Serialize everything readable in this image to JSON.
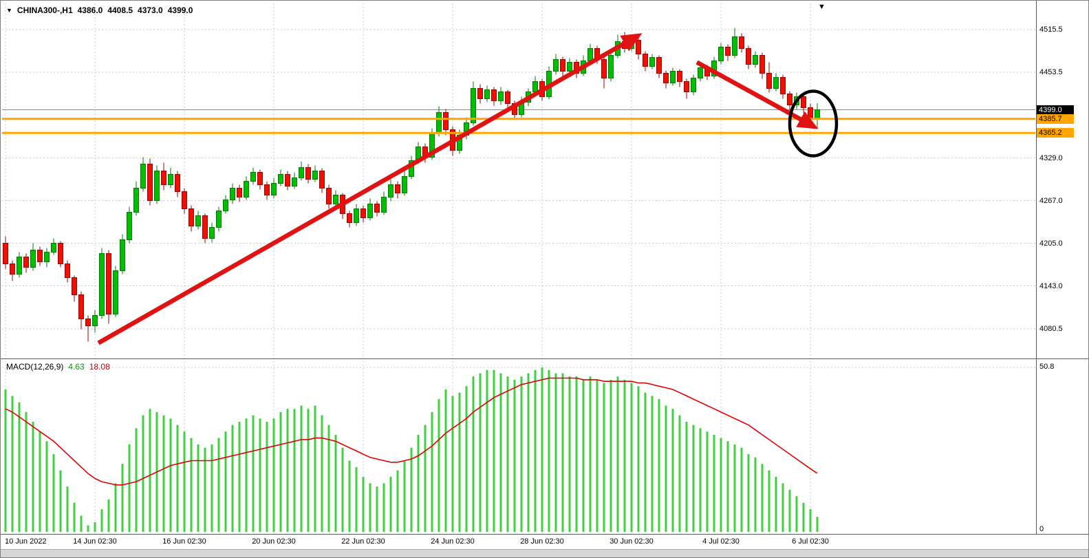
{
  "header": {
    "title": "CHINA300-,H1",
    "open": "4386.0",
    "high": "4408.5",
    "low": "4373.0",
    "close": "4399.0"
  },
  "macd_header": {
    "title": "MACD(12,26,9)",
    "main_value": "4.63",
    "signal_value": "18.08"
  },
  "macd_scale": {
    "top": "50.8",
    "zero": "0"
  },
  "shift_marker": "▼",
  "dropdown_marker": "▼",
  "chart_data": {
    "type": "candlestick",
    "title": "CHINA300- H1 with MACD(12,26,9)",
    "price_axis": {
      "max": 4515.5,
      "min": 4080.5,
      "ticks": [
        4515.5,
        4453.5,
        4329.0,
        4267.0,
        4205.0,
        4143.0,
        4080.5
      ]
    },
    "time_axis": {
      "labels": [
        "10 Jun 2022",
        "14 Jun 02:30",
        "16 Jun 02:30",
        "20 Jun 02:30",
        "22 Jun 02:30",
        "24 Jun 02:30",
        "28 Jun 02:30",
        "30 Jun 02:30",
        "4 Jul 02:30",
        "6 Jul 02:30"
      ],
      "tick_indices": [
        0,
        13,
        26,
        39,
        52,
        65,
        78,
        91,
        104,
        117
      ]
    },
    "current_price": {
      "value": 4399.0,
      "label": "4399.0"
    },
    "levels": [
      {
        "price": 4385.7,
        "label": "4385.7"
      },
      {
        "price": 4365.2,
        "label": "4365.2"
      }
    ],
    "annotations": {
      "uptrend_arrow": {
        "from_index": 13.5,
        "from_price": 4060,
        "to_index": 92,
        "to_price": 4507
      },
      "downtrend_arrow": {
        "from_index": 100.5,
        "from_price": 4468,
        "to_index": 117.6,
        "to_price": 4374
      },
      "highlight_ellipse": {
        "center_index": 117.4,
        "center_price": 4379,
        "radius_x_indices": 3.4,
        "radius_y_points": 47
      }
    },
    "candles": [
      [
        4205,
        4215,
        4168,
        4175
      ],
      [
        4175,
        4180,
        4150,
        4160
      ],
      [
        4160,
        4192,
        4155,
        4185
      ],
      [
        4185,
        4190,
        4162,
        4170
      ],
      [
        4170,
        4205,
        4165,
        4195
      ],
      [
        4195,
        4200,
        4172,
        4178
      ],
      [
        4178,
        4198,
        4170,
        4192
      ],
      [
        4192,
        4212,
        4188,
        4205
      ],
      [
        4205,
        4208,
        4170,
        4175
      ],
      [
        4175,
        4180,
        4148,
        4155
      ],
      [
        4155,
        4158,
        4120,
        4130
      ],
      [
        4130,
        4135,
        4080,
        4095
      ],
      [
        4095,
        4100,
        4062,
        4085
      ],
      [
        4085,
        4108,
        4075,
        4100
      ],
      [
        4100,
        4198,
        4095,
        4190
      ],
      [
        4190,
        4195,
        4088,
        4102
      ],
      [
        4102,
        4172,
        4098,
        4165
      ],
      [
        4165,
        4218,
        4160,
        4210
      ],
      [
        4210,
        4258,
        4205,
        4250
      ],
      [
        4250,
        4295,
        4245,
        4285
      ],
      [
        4285,
        4330,
        4280,
        4320
      ],
      [
        4320,
        4328,
        4260,
        4267
      ],
      [
        4267,
        4318,
        4262,
        4310
      ],
      [
        4310,
        4322,
        4282,
        4290
      ],
      [
        4290,
        4315,
        4285,
        4305
      ],
      [
        4305,
        4310,
        4272,
        4280
      ],
      [
        4280,
        4285,
        4248,
        4255
      ],
      [
        4255,
        4260,
        4222,
        4230
      ],
      [
        4230,
        4252,
        4225,
        4245
      ],
      [
        4245,
        4248,
        4205,
        4212
      ],
      [
        4212,
        4235,
        4206,
        4228
      ],
      [
        4228,
        4258,
        4222,
        4252
      ],
      [
        4252,
        4275,
        4248,
        4268
      ],
      [
        4268,
        4292,
        4262,
        4285
      ],
      [
        4285,
        4290,
        4265,
        4272
      ],
      [
        4272,
        4302,
        4268,
        4295
      ],
      [
        4295,
        4315,
        4290,
        4308
      ],
      [
        4308,
        4312,
        4283,
        4290
      ],
      [
        4290,
        4295,
        4268,
        4275
      ],
      [
        4275,
        4300,
        4270,
        4292
      ],
      [
        4292,
        4312,
        4288,
        4305
      ],
      [
        4305,
        4310,
        4282,
        4288
      ],
      [
        4288,
        4308,
        4284,
        4300
      ],
      [
        4300,
        4324,
        4296,
        4315
      ],
      [
        4315,
        4320,
        4292,
        4298
      ],
      [
        4298,
        4318,
        4294,
        4310
      ],
      [
        4310,
        4314,
        4278,
        4285
      ],
      [
        4285,
        4290,
        4255,
        4262
      ],
      [
        4262,
        4282,
        4256,
        4275
      ],
      [
        4275,
        4278,
        4240,
        4248
      ],
      [
        4248,
        4252,
        4228,
        4235
      ],
      [
        4235,
        4262,
        4230,
        4255
      ],
      [
        4255,
        4260,
        4235,
        4242
      ],
      [
        4242,
        4270,
        4238,
        4262
      ],
      [
        4262,
        4266,
        4244,
        4250
      ],
      [
        4250,
        4280,
        4246,
        4272
      ],
      [
        4272,
        4298,
        4266,
        4290
      ],
      [
        4290,
        4295,
        4270,
        4278
      ],
      [
        4278,
        4310,
        4274,
        4302
      ],
      [
        4302,
        4332,
        4298,
        4325
      ],
      [
        4325,
        4352,
        4320,
        4345
      ],
      [
        4345,
        4350,
        4322,
        4330
      ],
      [
        4330,
        4372,
        4326,
        4365
      ],
      [
        4365,
        4404,
        4360,
        4395
      ],
      [
        4395,
        4400,
        4362,
        4370
      ],
      [
        4370,
        4375,
        4332,
        4340
      ],
      [
        4340,
        4370,
        4335,
        4362
      ],
      [
        4362,
        4388,
        4356,
        4380
      ],
      [
        4380,
        4440,
        4376,
        4430
      ],
      [
        4430,
        4436,
        4408,
        4415
      ],
      [
        4415,
        4434,
        4410,
        4428
      ],
      [
        4428,
        4432,
        4405,
        4412
      ],
      [
        4412,
        4432,
        4406,
        4425
      ],
      [
        4425,
        4428,
        4400,
        4408
      ],
      [
        4408,
        4412,
        4385,
        4392
      ],
      [
        4392,
        4418,
        4388,
        4410
      ],
      [
        4410,
        4430,
        4404,
        4425
      ],
      [
        4425,
        4448,
        4420,
        4440
      ],
      [
        4440,
        4444,
        4412,
        4418
      ],
      [
        4418,
        4462,
        4414,
        4455
      ],
      [
        4455,
        4480,
        4450,
        4472
      ],
      [
        4472,
        4476,
        4448,
        4455
      ],
      [
        4455,
        4474,
        4450,
        4468
      ],
      [
        4468,
        4472,
        4445,
        4452
      ],
      [
        4452,
        4478,
        4448,
        4470
      ],
      [
        4470,
        4495,
        4465,
        4488
      ],
      [
        4488,
        4492,
        4466,
        4472
      ],
      [
        4472,
        4476,
        4430,
        4445
      ],
      [
        4445,
        4485,
        4440,
        4478
      ],
      [
        4478,
        4508,
        4474,
        4498
      ],
      [
        4498,
        4512,
        4482,
        4488
      ],
      [
        4488,
        4506,
        4484,
        4500
      ],
      [
        4500,
        4504,
        4472,
        4480
      ],
      [
        4480,
        4484,
        4455,
        4462
      ],
      [
        4462,
        4480,
        4458,
        4475
      ],
      [
        4475,
        4478,
        4445,
        4452
      ],
      [
        4452,
        4456,
        4430,
        4438
      ],
      [
        4438,
        4460,
        4434,
        4455
      ],
      [
        4455,
        4458,
        4432,
        4440
      ],
      [
        4440,
        4444,
        4415,
        4425
      ],
      [
        4425,
        4450,
        4420,
        4445
      ],
      [
        4445,
        4466,
        4440,
        4460
      ],
      [
        4460,
        4464,
        4442,
        4448
      ],
      [
        4448,
        4476,
        4444,
        4470
      ],
      [
        4470,
        4496,
        4465,
        4490
      ],
      [
        4490,
        4494,
        4470,
        4478
      ],
      [
        4478,
        4518,
        4474,
        4505
      ],
      [
        4505,
        4510,
        4482,
        4488
      ],
      [
        4488,
        4492,
        4458,
        4465
      ],
      [
        4465,
        4484,
        4460,
        4478
      ],
      [
        4478,
        4482,
        4444,
        4452
      ],
      [
        4452,
        4468,
        4424,
        4430
      ],
      [
        4430,
        4452,
        4426,
        4446
      ],
      [
        4446,
        4450,
        4415,
        4422
      ],
      [
        4422,
        4426,
        4398,
        4406
      ],
      [
        4406,
        4424,
        4400,
        4418
      ],
      [
        4418,
        4422,
        4394,
        4402
      ],
      [
        4402,
        4408,
        4378,
        4386
      ],
      [
        4386,
        4408.5,
        4373,
        4399
      ]
    ],
    "macd": {
      "label": "MACD(12,26,9)",
      "scale": {
        "max": 50.8,
        "min": 0
      },
      "histogram": [
        44,
        42,
        40,
        37,
        34,
        31,
        28,
        24,
        19,
        14,
        9,
        5,
        2,
        3,
        7,
        10,
        15,
        21,
        27,
        32,
        36,
        38,
        37,
        36,
        35,
        33,
        31,
        29,
        27,
        26,
        27,
        29,
        31,
        33,
        34,
        35,
        36,
        35,
        34,
        35,
        37,
        38,
        38,
        39,
        38,
        39,
        36,
        33,
        30,
        26,
        22,
        20,
        17,
        15,
        14,
        15,
        17,
        19,
        22,
        26,
        30,
        33,
        37,
        41,
        44,
        42,
        43,
        45,
        48,
        49,
        50,
        50,
        49,
        48,
        47,
        48,
        49,
        50,
        50.8,
        50,
        49,
        49,
        48,
        48,
        47,
        48,
        47,
        46,
        47,
        48,
        47,
        46,
        45,
        43,
        42,
        41,
        39,
        38,
        36,
        34,
        33,
        32,
        31,
        30,
        29,
        28,
        27,
        26,
        24,
        23,
        21,
        19,
        17,
        15,
        13,
        11,
        9,
        7,
        4.63
      ],
      "signal": [
        38,
        37,
        35.5,
        34,
        32.5,
        31,
        29.5,
        28,
        26,
        24,
        22,
        20,
        18,
        16.5,
        15.5,
        15,
        14.5,
        14.5,
        15,
        15.5,
        16.5,
        17.5,
        18.5,
        19.5,
        20.5,
        21,
        21.5,
        22,
        22,
        22,
        22,
        22.5,
        23,
        23.5,
        24,
        24.5,
        25,
        25.5,
        26,
        26.5,
        27,
        27.5,
        28,
        28.5,
        28.5,
        29,
        29,
        28.5,
        28,
        27,
        26,
        25,
        24,
        23,
        22.5,
        22,
        21.5,
        21.5,
        22,
        22.5,
        23.5,
        25,
        26.5,
        28.5,
        30.5,
        32,
        33.5,
        35,
        37,
        38.5,
        40,
        41.5,
        42.5,
        43.5,
        44.5,
        45.5,
        46,
        46.5,
        47,
        47.5,
        47.5,
        47.5,
        47.5,
        47.5,
        47,
        47,
        47,
        46.5,
        46.5,
        46.5,
        46.5,
        46.5,
        46,
        46,
        45.5,
        45,
        44.5,
        44,
        43,
        42,
        41,
        40,
        39,
        38,
        37,
        36,
        35,
        34,
        33,
        31.5,
        30,
        28.5,
        27,
        25.5,
        24,
        22.5,
        21,
        19.5,
        18.08
      ]
    },
    "colors": {
      "up": "#00bf00",
      "up_border": "#007a00",
      "down": "#f01000",
      "down_border": "#9c0000",
      "histogram": "#3fd03f",
      "signal": "#e00000",
      "level": "#ffa500",
      "current_line": "#8a8a8a",
      "grid": "#c9c9c9",
      "arrow": "#e01212",
      "ellipse": "#000000"
    }
  }
}
